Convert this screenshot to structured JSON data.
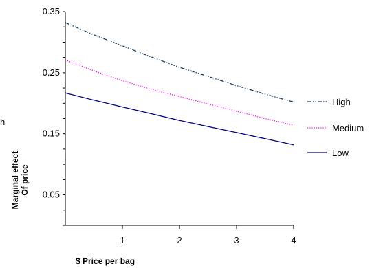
{
  "chart_data": {
    "type": "line",
    "xlabel": "$ Price per bag",
    "ylabel_line1": "Marginal effect",
    "ylabel_line2": "Of price",
    "stray_text": "h",
    "xlim": [
      0,
      4
    ],
    "ylim": [
      0,
      0.35
    ],
    "x_ticks": [
      "1",
      "2",
      "3",
      "4"
    ],
    "x_tick_values": [
      1,
      2,
      3,
      4
    ],
    "y_ticks": [
      "0.05",
      "0.15",
      "0.25",
      "0.35"
    ],
    "y_tick_values": [
      0.05,
      0.15,
      0.25,
      0.35
    ],
    "grid": false,
    "legend_position": "right",
    "x": [
      0,
      0.5,
      1,
      1.5,
      2,
      2.5,
      3,
      3.5,
      4
    ],
    "series": [
      {
        "name": "High",
        "color": "#1a3a5c",
        "dash": "dash-dot-dot",
        "values": [
          0.332,
          0.312,
          0.294,
          0.276,
          0.259,
          0.244,
          0.229,
          0.215,
          0.202
        ]
      },
      {
        "name": "Medium",
        "color": "#ff00ff",
        "dash": "dotted",
        "values": [
          0.271,
          0.253,
          0.237,
          0.223,
          0.211,
          0.199,
          0.187,
          0.175,
          0.164
        ]
      },
      {
        "name": "Low",
        "color": "#00007f",
        "dash": "solid",
        "values": [
          0.217,
          0.205,
          0.194,
          0.183,
          0.172,
          0.162,
          0.152,
          0.142,
          0.132
        ]
      }
    ]
  }
}
